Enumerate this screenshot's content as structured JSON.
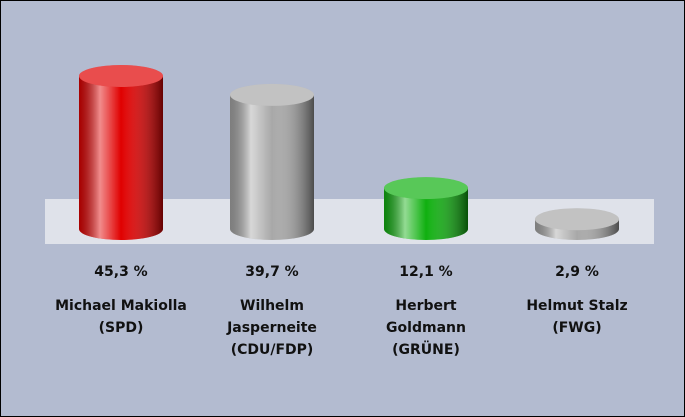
{
  "chart_data": {
    "type": "bar",
    "categories": [
      "Michael Makiolla (SPD)",
      "Wilhelm Jasperneite (CDU/FDP)",
      "Herbert Goldmann (GRÜNE)",
      "Helmut Stalz (FWG)"
    ],
    "values": [
      45.3,
      39.7,
      12.1,
      2.9
    ],
    "value_labels": [
      "45,3 %",
      "39,7 %",
      "12,1 %",
      "2,9 %"
    ],
    "colors": [
      "#e00000",
      "#a8a8a8",
      "#10b010",
      "#a8a8a8"
    ]
  }
}
